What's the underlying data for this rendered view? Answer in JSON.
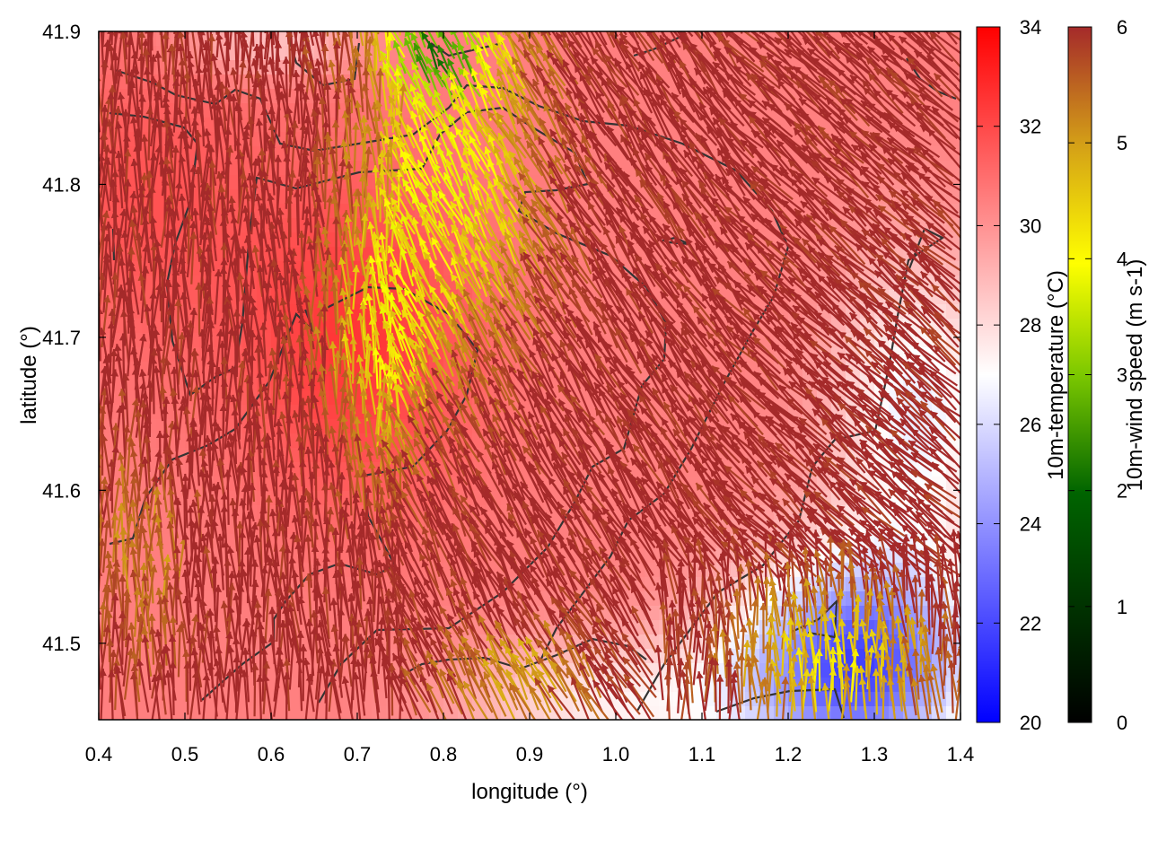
{
  "chart_data": {
    "type": "heatmap",
    "xlabel": "longitude (°)",
    "ylabel": "latitude (°)",
    "xlim": [
      0.4,
      1.4
    ],
    "ylim": [
      41.45,
      41.9
    ],
    "x_ticks": [
      "0.4",
      "0.5",
      "0.6",
      "0.7",
      "0.8",
      "0.9",
      "1.0",
      "1.1",
      "1.2",
      "1.3",
      "1.4"
    ],
    "y_ticks": [
      "41.5",
      "41.6",
      "41.7",
      "41.8",
      "41.9"
    ],
    "temperature_colorbar": {
      "label": "10m-temperature (°C)",
      "range": [
        20,
        34
      ],
      "ticks": [
        "20",
        "22",
        "24",
        "26",
        "28",
        "30",
        "32",
        "34"
      ],
      "colors": [
        "#0000ff",
        "#ffffff",
        "#ff0000"
      ]
    },
    "wind_colorbar": {
      "label": "10m-wind speed (m s-1)",
      "range": [
        0,
        6
      ],
      "ticks": [
        "0",
        "1",
        "2",
        "3",
        "4",
        "5",
        "6"
      ],
      "colors": [
        "#000000",
        "#006400",
        "#7cc800",
        "#ffff00",
        "#d4a017",
        "#a52a2a"
      ]
    },
    "temperature_field_description": "warm (30–33 °C) over west and center, cool (21–24 °C) in the south-east corner",
    "wind_field_description": "strong (≥5.5 m s-1) north-westward winds over most of the domain, weaker winds over the center-north and south-east"
  }
}
